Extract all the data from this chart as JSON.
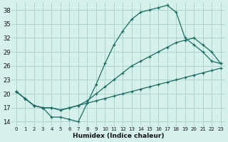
{
  "xlabel": "Humidex (Indice chaleur)",
  "bg_color": "#d6f0ec",
  "grid_color": "#aad4cc",
  "line_color": "#1a6b62",
  "xlim": [
    -0.5,
    23.5
  ],
  "ylim": [
    13.0,
    39.5
  ],
  "xticks": [
    0,
    1,
    2,
    3,
    4,
    5,
    6,
    7,
    8,
    9,
    10,
    11,
    12,
    13,
    14,
    15,
    16,
    17,
    18,
    19,
    20,
    21,
    22,
    23
  ],
  "yticks": [
    14,
    17,
    20,
    23,
    26,
    29,
    32,
    35,
    38
  ],
  "line1_y": [
    20.5,
    19.0,
    17.5,
    17.0,
    15.0,
    15.0,
    14.5,
    14.0,
    18.0,
    22.0,
    26.5,
    30.5,
    33.5,
    36.0,
    37.5,
    38.0,
    38.5,
    39.0,
    37.5,
    32.0,
    30.5,
    29.0,
    27.0,
    26.5
  ],
  "line2_y": [
    20.5,
    19.0,
    17.5,
    17.0,
    17.0,
    16.5,
    17.0,
    17.5,
    18.0,
    18.5,
    19.0,
    19.5,
    20.0,
    20.5,
    21.0,
    21.5,
    22.0,
    22.5,
    23.0,
    23.5,
    24.0,
    24.5,
    25.0,
    25.5
  ],
  "line3_y": [
    20.5,
    19.0,
    17.5,
    17.0,
    17.0,
    16.5,
    17.0,
    17.5,
    18.5,
    20.0,
    21.5,
    23.0,
    24.5,
    26.0,
    27.0,
    28.0,
    29.0,
    30.0,
    31.0,
    31.5,
    32.0,
    30.5,
    29.0,
    26.5
  ]
}
